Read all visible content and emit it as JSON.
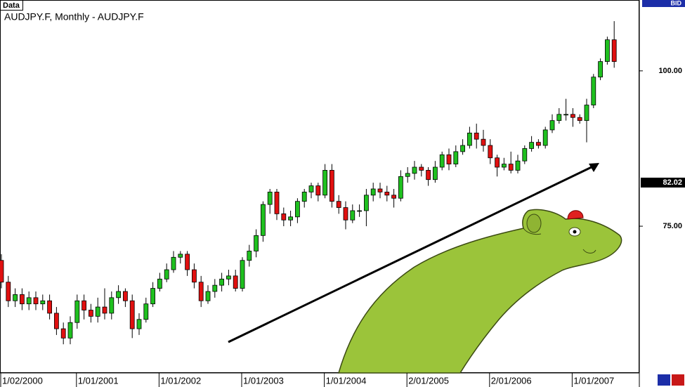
{
  "chart_data": {
    "type": "candlestick",
    "title": "AUDJPY.F, Monthly - AUDJPY.F",
    "panel_label": "Data",
    "price_type": "BID",
    "bid_price": 82.02,
    "ylim": [
      51.5,
      111.4
    ],
    "yticks": [
      {
        "value": 100,
        "label": "100.00"
      },
      {
        "value": 75,
        "label": "75.00"
      }
    ],
    "up_color": "#1fc01f",
    "down_color": "#e01010",
    "categories": [
      "1/02/2000",
      null,
      null,
      null,
      null,
      null,
      null,
      null,
      null,
      null,
      null,
      "1/01/2001",
      null,
      null,
      null,
      null,
      null,
      null,
      null,
      null,
      null,
      null,
      null,
      "1/01/2002",
      null,
      null,
      null,
      null,
      null,
      null,
      null,
      null,
      null,
      null,
      null,
      "1/01/2003",
      null,
      null,
      null,
      null,
      null,
      null,
      null,
      null,
      null,
      null,
      null,
      "1/01/2004",
      null,
      null,
      null,
      null,
      null,
      null,
      null,
      null,
      null,
      null,
      null,
      "2/01/2005",
      null,
      null,
      null,
      null,
      null,
      null,
      null,
      null,
      null,
      null,
      null,
      "2/01/2006",
      null,
      null,
      null,
      null,
      null,
      null,
      null,
      null,
      null,
      null,
      null,
      "1/01/2007",
      null,
      null,
      null,
      null,
      null,
      null
    ],
    "open": [
      69.5,
      66.0,
      63.0,
      64.0,
      62.5,
      63.5,
      62.5,
      63.0,
      61.0,
      58.5,
      57.0,
      59.5,
      63.0,
      61.5,
      60.5,
      62.0,
      61.0,
      63.5,
      64.5,
      63.0,
      58.5,
      60.0,
      62.5,
      65.0,
      66.5,
      68.0,
      70.0,
      70.5,
      68.0,
      66.0,
      63.0,
      64.5,
      65.5,
      66.5,
      67.0,
      65.0,
      69.5,
      71.0,
      73.5,
      78.5,
      80.5,
      77.0,
      76.0,
      76.5,
      79.0,
      80.5,
      81.5,
      80.0,
      84.0,
      79.0,
      78.0,
      76.0,
      77.5,
      77.5,
      80.0,
      81.0,
      80.5,
      80.0,
      79.5,
      83.0,
      83.5,
      84.5,
      84.0,
      82.5,
      84.5,
      86.5,
      85.0,
      87.0,
      88.0,
      90.0,
      89.0,
      88.0,
      86.0,
      84.5,
      85.0,
      84.0,
      85.5,
      87.5,
      88.5,
      88.0,
      90.5,
      92.0,
      93.0,
      93.0,
      92.5,
      92.0,
      94.5,
      99.0,
      101.5,
      105.0
    ],
    "high": [
      70.5,
      67.0,
      65.0,
      65.0,
      64.5,
      64.5,
      64.0,
      64.0,
      62.0,
      59.5,
      60.5,
      64.0,
      64.0,
      62.5,
      63.5,
      65.0,
      64.5,
      65.5,
      65.0,
      64.0,
      61.0,
      63.5,
      66.0,
      67.5,
      69.0,
      71.0,
      71.0,
      71.0,
      69.0,
      67.0,
      65.5,
      66.5,
      67.5,
      68.0,
      68.0,
      70.0,
      72.0,
      74.5,
      79.0,
      81.0,
      81.0,
      78.0,
      77.5,
      79.5,
      81.0,
      82.0,
      82.0,
      85.0,
      85.0,
      80.0,
      79.0,
      78.5,
      78.5,
      81.0,
      82.0,
      82.0,
      81.5,
      81.0,
      84.0,
      84.5,
      85.5,
      85.0,
      84.5,
      85.5,
      87.0,
      87.5,
      88.0,
      89.0,
      91.0,
      91.5,
      90.5,
      89.0,
      86.5,
      86.0,
      87.0,
      86.5,
      88.0,
      89.5,
      89.0,
      91.0,
      93.0,
      94.0,
      95.5,
      94.0,
      93.0,
      95.5,
      99.5,
      102.0,
      105.5,
      108.0
    ],
    "low": [
      65.0,
      62.0,
      62.0,
      61.5,
      61.5,
      61.5,
      61.5,
      60.0,
      57.5,
      56.0,
      56.0,
      58.5,
      60.0,
      59.5,
      59.5,
      60.0,
      60.0,
      62.5,
      62.0,
      57.0,
      57.5,
      59.5,
      62.0,
      64.5,
      66.0,
      67.5,
      69.0,
      67.0,
      65.0,
      62.0,
      62.5,
      63.5,
      64.5,
      65.5,
      64.5,
      64.5,
      68.5,
      70.0,
      72.5,
      77.0,
      76.0,
      75.0,
      75.0,
      75.5,
      78.0,
      79.5,
      79.0,
      79.5,
      78.0,
      77.0,
      74.5,
      75.5,
      76.5,
      75.0,
      79.0,
      79.5,
      79.0,
      78.0,
      79.0,
      82.0,
      82.5,
      83.0,
      81.5,
      82.0,
      84.0,
      84.0,
      84.5,
      86.5,
      87.5,
      87.5,
      87.0,
      85.0,
      83.0,
      84.0,
      83.5,
      83.5,
      85.0,
      87.0,
      87.5,
      87.5,
      90.0,
      91.5,
      92.0,
      91.0,
      91.5,
      88.5,
      94.0,
      98.5,
      101.0,
      100.5
    ],
    "close": [
      66.0,
      63.0,
      64.0,
      62.5,
      63.5,
      62.5,
      63.0,
      61.0,
      58.5,
      57.0,
      59.5,
      63.0,
      61.5,
      60.5,
      62.0,
      61.0,
      63.5,
      64.5,
      63.0,
      58.5,
      60.0,
      62.5,
      65.0,
      66.5,
      68.0,
      70.0,
      70.5,
      68.0,
      66.0,
      63.0,
      64.5,
      65.5,
      66.5,
      67.0,
      65.0,
      69.5,
      71.0,
      73.5,
      78.5,
      80.5,
      77.0,
      76.0,
      76.5,
      79.0,
      80.5,
      81.5,
      80.0,
      84.0,
      79.0,
      78.0,
      76.0,
      77.5,
      77.5,
      80.0,
      81.0,
      80.5,
      80.0,
      79.5,
      83.0,
      83.5,
      84.5,
      84.0,
      82.5,
      84.5,
      86.5,
      85.0,
      87.0,
      88.0,
      90.0,
      89.0,
      88.0,
      86.0,
      84.5,
      85.0,
      84.0,
      85.5,
      87.5,
      88.5,
      88.0,
      90.5,
      92.0,
      93.0,
      93.0,
      92.5,
      92.0,
      94.5,
      99.0,
      101.5,
      105.0,
      101.5
    ]
  }
}
